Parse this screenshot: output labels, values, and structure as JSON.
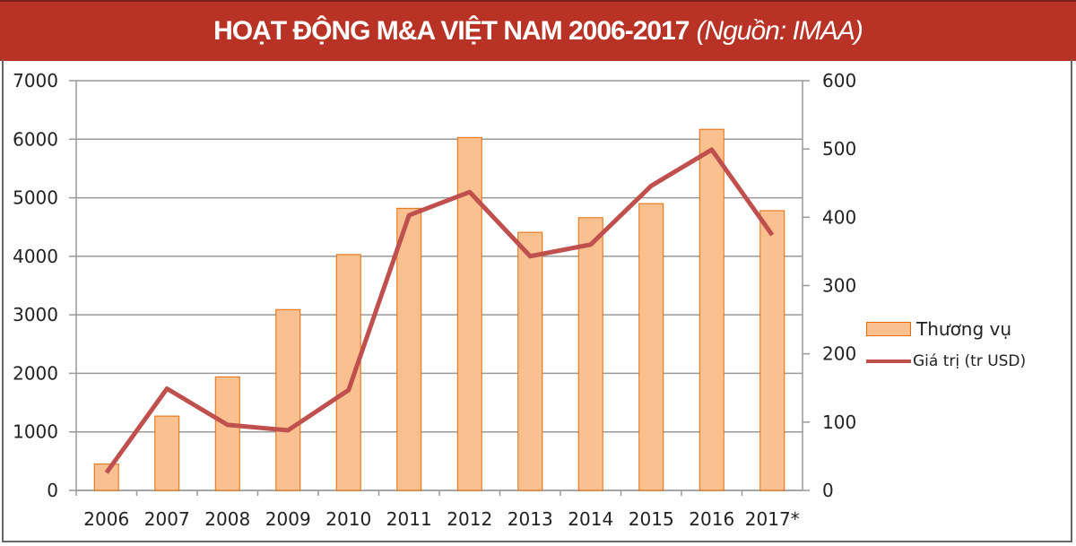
{
  "chart_data": {
    "type": "bar",
    "title": "HOẠT ĐỘNG M&A VIỆT NAM 2006-2017",
    "subtitle": "(Nguồn: IMAA)",
    "categories": [
      "2006",
      "2007",
      "2008",
      "2009",
      "2010",
      "2011",
      "2012",
      "2013",
      "2014",
      "2015",
      "2016",
      "2017*"
    ],
    "series": [
      {
        "name": "Thương vụ",
        "type": "bar",
        "axis": "left",
        "color": "#fac090",
        "edge_color": "#e46c0a",
        "values": [
          450,
          1270,
          1940,
          3090,
          4030,
          4820,
          6030,
          4410,
          4660,
          4900,
          6170,
          4780
        ]
      },
      {
        "name": "Giá trị (tr USD)",
        "type": "line",
        "axis": "right",
        "color": "#c0504d",
        "values": [
          26,
          149,
          96,
          88,
          147,
          403,
          437,
          343,
          360,
          446,
          499,
          374
        ]
      }
    ],
    "y_left": {
      "range": [
        0,
        7000
      ],
      "ticks": [
        "0",
        "1000",
        "2000",
        "3000",
        "4000",
        "5000",
        "6000",
        "7000"
      ]
    },
    "y_right": {
      "range": [
        0,
        600
      ],
      "ticks": [
        "0",
        "100",
        "200",
        "300",
        "400",
        "500",
        "600"
      ]
    },
    "grid": true,
    "legend_position": "right"
  }
}
